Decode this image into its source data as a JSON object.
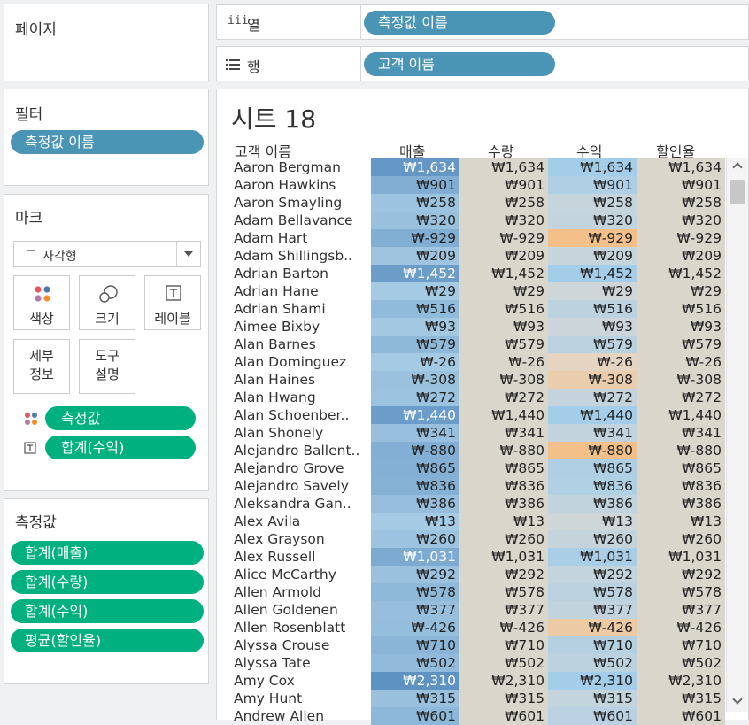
{
  "pages": {
    "label": "페이지"
  },
  "filters": {
    "label": "필터",
    "pill": "측정값 이름"
  },
  "marks": {
    "label": "마크",
    "mark_type": "사각형",
    "buttons": {
      "color": "색상",
      "size": "크기",
      "label": "레이블",
      "detail": "세부\n정보",
      "tooltip": "도구\n설명"
    },
    "pills": [
      "측정값",
      "합계(수익)"
    ]
  },
  "measure_values": {
    "label": "측정값",
    "pills": [
      "합계(매출)",
      "합계(수량)",
      "합계(수익)",
      "평균(할인율)"
    ]
  },
  "shelves": {
    "columns": {
      "label": "열",
      "pill": "측정값 이름"
    },
    "rows": {
      "label": "행",
      "pill": "고객 이름"
    }
  },
  "sheet": {
    "title": "시트 18",
    "headers": [
      "고객 이름",
      "매출",
      "수량",
      "수익",
      "할인율"
    ],
    "rows": [
      {
        "name": "Aaron Bergman",
        "value": "₩1,634"
      },
      {
        "name": "Aaron Hawkins",
        "value": "₩901"
      },
      {
        "name": "Aaron Smayling",
        "value": "₩258"
      },
      {
        "name": "Adam Bellavance",
        "value": "₩320"
      },
      {
        "name": "Adam Hart",
        "value": "₩-929"
      },
      {
        "name": "Adam Shillingsb..",
        "value": "₩209"
      },
      {
        "name": "Adrian Barton",
        "value": "₩1,452"
      },
      {
        "name": "Adrian Hane",
        "value": "₩29"
      },
      {
        "name": "Adrian Shami",
        "value": "₩516"
      },
      {
        "name": "Aimee Bixby",
        "value": "₩93"
      },
      {
        "name": "Alan Barnes",
        "value": "₩579"
      },
      {
        "name": "Alan Dominguez",
        "value": "₩-26"
      },
      {
        "name": "Alan Haines",
        "value": "₩-308"
      },
      {
        "name": "Alan Hwang",
        "value": "₩272"
      },
      {
        "name": "Alan Schoenber..",
        "value": "₩1,440"
      },
      {
        "name": "Alan Shonely",
        "value": "₩341"
      },
      {
        "name": "Alejandro Ballent..",
        "value": "₩-880"
      },
      {
        "name": "Alejandro Grove",
        "value": "₩865"
      },
      {
        "name": "Alejandro Savely",
        "value": "₩836"
      },
      {
        "name": "Aleksandra Gan..",
        "value": "₩386"
      },
      {
        "name": "Alex Avila",
        "value": "₩13"
      },
      {
        "name": "Alex Grayson",
        "value": "₩260"
      },
      {
        "name": "Alex Russell",
        "value": "₩1,031"
      },
      {
        "name": "Alice McCarthy",
        "value": "₩292"
      },
      {
        "name": "Allen Armold",
        "value": "₩578"
      },
      {
        "name": "Allen Goldenen",
        "value": "₩377"
      },
      {
        "name": "Allen Rosenblatt",
        "value": "₩-426"
      },
      {
        "name": "Alyssa Crouse",
        "value": "₩710"
      },
      {
        "name": "Alyssa Tate",
        "value": "₩502"
      },
      {
        "name": "Amy Cox",
        "value": "₩2,310"
      },
      {
        "name": "Amy Hunt",
        "value": "₩315"
      },
      {
        "name": "Andrew Allen",
        "value": "₩601"
      }
    ]
  },
  "colors": {
    "sales_scale": [
      "#a6cbe4",
      "#5e92c3"
    ],
    "other_neutral": "#d9d6cb",
    "profit_positive": "#a3cde8",
    "profit_negative": "#f3c089",
    "pill_blue": "#4a95b5",
    "pill_green": "#00b17f"
  }
}
